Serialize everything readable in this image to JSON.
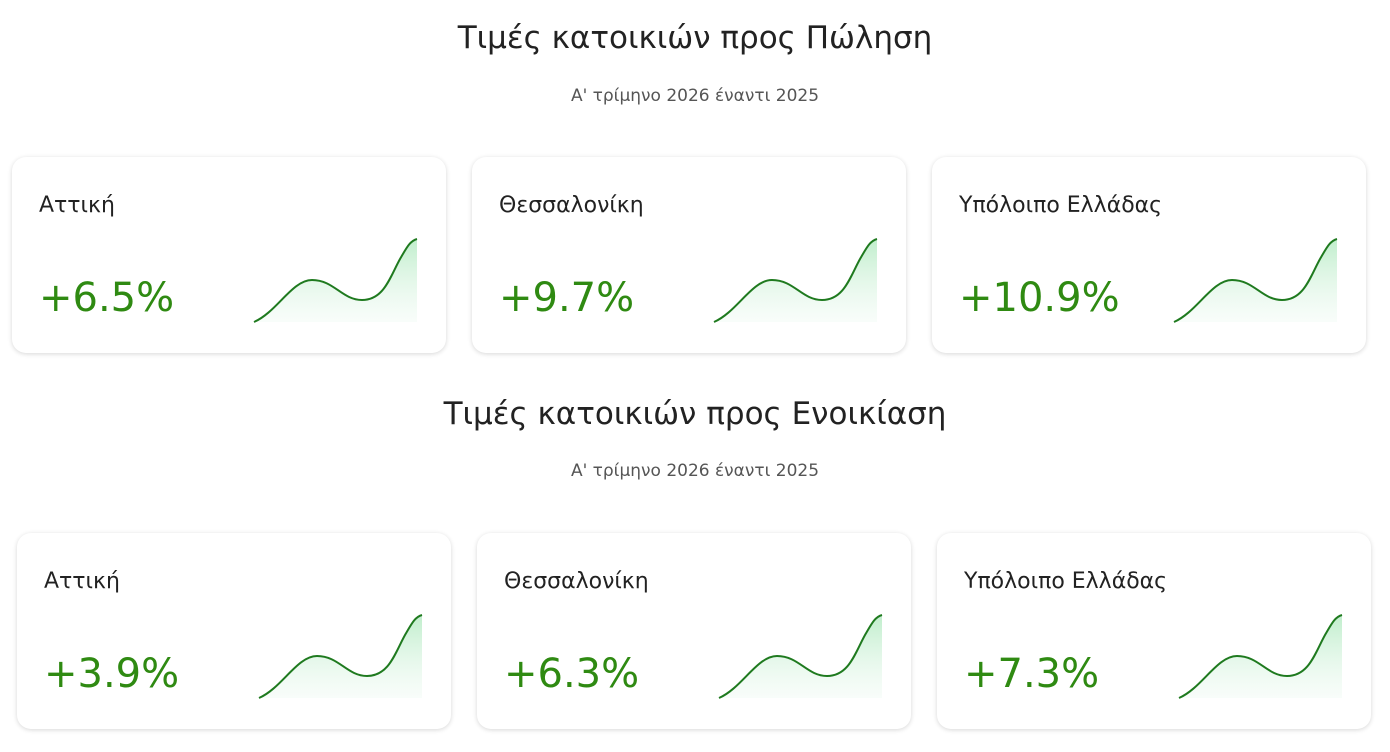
{
  "sections": [
    {
      "title": "Τιμές κατοικιών προς Πώληση",
      "subtitle": "Α' τρίμηνο 2026 έναντι 2025",
      "cards": [
        {
          "label": "Αττική",
          "value": "+6.5%"
        },
        {
          "label": "Θεσσαλονίκη",
          "value": "+9.7%"
        },
        {
          "label": "Υπόλοιπο Ελλάδας",
          "value": "+10.9%"
        }
      ]
    },
    {
      "title": "Τιμές κατοικιών προς Ενοικίαση",
      "subtitle": "Α' τρίμηνο 2026 έναντι 2025",
      "cards": [
        {
          "label": "Αττική",
          "value": "+3.9%"
        },
        {
          "label": "Θεσσαλονίκη",
          "value": "+6.3%"
        },
        {
          "label": "Υπόλοιπο Ελλάδας",
          "value": "+7.3%"
        }
      ]
    }
  ]
}
